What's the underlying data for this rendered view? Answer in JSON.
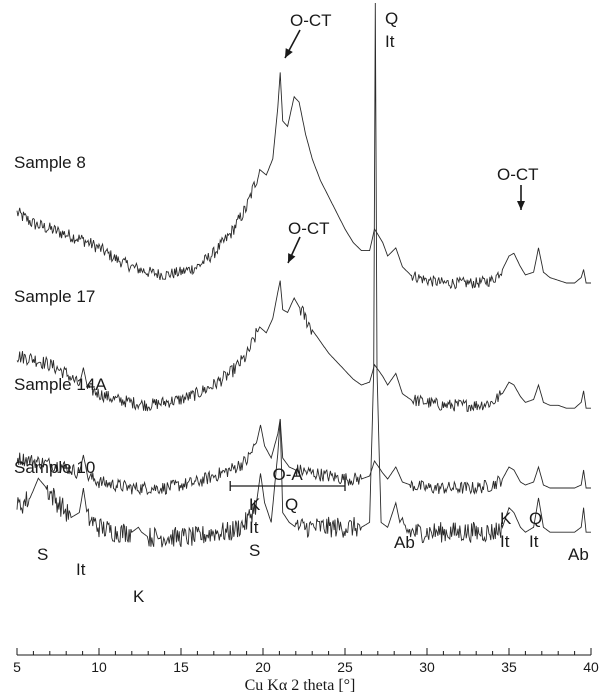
{
  "chart_data": {
    "type": "line",
    "xlabel": "Cu Kα 2 theta [°]",
    "ylabel": "",
    "xlim": [
      5,
      40
    ],
    "x_ticks": [
      5,
      10,
      15,
      20,
      25,
      30,
      35,
      40
    ],
    "grid": false,
    "legend": "none",
    "series": [
      {
        "name": "Sample 8",
        "points": [
          [
            5,
            0.46
          ],
          [
            6,
            0.42
          ],
          [
            7,
            0.4
          ],
          [
            8,
            0.38
          ],
          [
            9,
            0.36
          ],
          [
            10,
            0.33
          ],
          [
            11,
            0.29
          ],
          [
            12,
            0.26
          ],
          [
            13,
            0.24
          ],
          [
            14,
            0.23
          ],
          [
            15,
            0.24
          ],
          [
            16,
            0.26
          ],
          [
            17,
            0.31
          ],
          [
            18,
            0.38
          ],
          [
            19,
            0.48
          ],
          [
            19.8,
            0.62
          ],
          [
            20.2,
            0.6
          ],
          [
            20.6,
            0.66
          ],
          [
            20.9,
            0.85
          ],
          [
            21.05,
            0.98
          ],
          [
            21.2,
            0.8
          ],
          [
            21.5,
            0.78
          ],
          [
            21.9,
            0.89
          ],
          [
            22.2,
            0.87
          ],
          [
            22.6,
            0.75
          ],
          [
            23,
            0.66
          ],
          [
            23.5,
            0.58
          ],
          [
            24,
            0.52
          ],
          [
            24.5,
            0.46
          ],
          [
            25,
            0.4
          ],
          [
            25.5,
            0.35
          ],
          [
            26,
            0.32
          ],
          [
            26.5,
            0.32
          ],
          [
            26.8,
            0.4
          ],
          [
            27.3,
            0.35
          ],
          [
            27.6,
            0.3
          ],
          [
            28.1,
            0.33
          ],
          [
            28.5,
            0.26
          ],
          [
            29,
            0.23
          ],
          [
            30,
            0.21
          ],
          [
            31,
            0.2
          ],
          [
            32,
            0.2
          ],
          [
            33,
            0.2
          ],
          [
            34,
            0.21
          ],
          [
            34.6,
            0.25
          ],
          [
            35,
            0.3
          ],
          [
            35.3,
            0.31
          ],
          [
            35.7,
            0.26
          ],
          [
            36,
            0.23
          ],
          [
            36.5,
            0.24
          ],
          [
            36.8,
            0.33
          ],
          [
            37.1,
            0.24
          ],
          [
            37.5,
            0.22
          ],
          [
            38,
            0.21
          ],
          [
            38.5,
            0.2
          ],
          [
            39,
            0.2
          ],
          [
            39.4,
            0.22
          ],
          [
            39.55,
            0.25
          ],
          [
            39.7,
            0.2
          ],
          [
            40,
            0.2
          ]
        ]
      },
      {
        "name": "Sample 17",
        "points": [
          [
            5,
            0.4
          ],
          [
            6,
            0.39
          ],
          [
            7,
            0.37
          ],
          [
            8,
            0.34
          ],
          [
            8.8,
            0.3
          ],
          [
            9.05,
            0.36
          ],
          [
            9.3,
            0.29
          ],
          [
            10,
            0.27
          ],
          [
            11,
            0.25
          ],
          [
            12,
            0.24
          ],
          [
            13,
            0.23
          ],
          [
            14,
            0.24
          ],
          [
            15,
            0.25
          ],
          [
            16,
            0.27
          ],
          [
            17,
            0.3
          ],
          [
            18,
            0.34
          ],
          [
            19,
            0.4
          ],
          [
            19.8,
            0.5
          ],
          [
            20.2,
            0.48
          ],
          [
            20.6,
            0.53
          ],
          [
            20.9,
            0.62
          ],
          [
            21.05,
            0.66
          ],
          [
            21.2,
            0.56
          ],
          [
            21.5,
            0.55
          ],
          [
            21.9,
            0.6
          ],
          [
            22.3,
            0.56
          ],
          [
            23,
            0.49
          ],
          [
            23.5,
            0.45
          ],
          [
            24,
            0.41
          ],
          [
            24.5,
            0.38
          ],
          [
            25,
            0.35
          ],
          [
            25.5,
            0.32
          ],
          [
            26,
            0.3
          ],
          [
            26.5,
            0.31
          ],
          [
            26.8,
            0.37
          ],
          [
            27.3,
            0.33
          ],
          [
            27.6,
            0.3
          ],
          [
            28.1,
            0.34
          ],
          [
            28.5,
            0.27
          ],
          [
            29,
            0.25
          ],
          [
            30,
            0.24
          ],
          [
            31,
            0.23
          ],
          [
            32,
            0.23
          ],
          [
            33,
            0.23
          ],
          [
            34,
            0.24
          ],
          [
            34.6,
            0.27
          ],
          [
            35,
            0.31
          ],
          [
            35.3,
            0.3
          ],
          [
            35.7,
            0.26
          ],
          [
            36,
            0.24
          ],
          [
            36.5,
            0.25
          ],
          [
            36.8,
            0.3
          ],
          [
            37.1,
            0.24
          ],
          [
            37.5,
            0.23
          ],
          [
            38,
            0.23
          ],
          [
            38.5,
            0.22
          ],
          [
            39,
            0.22
          ],
          [
            39.4,
            0.24
          ],
          [
            39.55,
            0.28
          ],
          [
            39.7,
            0.22
          ],
          [
            40,
            0.22
          ]
        ]
      },
      {
        "name": "Sample 14A",
        "points": [
          [
            5,
            0.34
          ],
          [
            6,
            0.33
          ],
          [
            7,
            0.32
          ],
          [
            8,
            0.31
          ],
          [
            8.8,
            0.29
          ],
          [
            9.05,
            0.35
          ],
          [
            9.3,
            0.28
          ],
          [
            10,
            0.26
          ],
          [
            11,
            0.25
          ],
          [
            12,
            0.24
          ],
          [
            13,
            0.24
          ],
          [
            14,
            0.24
          ],
          [
            15,
            0.25
          ],
          [
            16,
            0.26
          ],
          [
            17,
            0.28
          ],
          [
            18,
            0.3
          ],
          [
            19,
            0.33
          ],
          [
            19.6,
            0.39
          ],
          [
            19.85,
            0.45
          ],
          [
            20.1,
            0.38
          ],
          [
            20.5,
            0.34
          ],
          [
            20.9,
            0.42
          ],
          [
            21.05,
            0.47
          ],
          [
            21.2,
            0.34
          ],
          [
            21.6,
            0.31
          ],
          [
            22,
            0.3
          ],
          [
            23,
            0.29
          ],
          [
            24,
            0.28
          ],
          [
            25,
            0.27
          ],
          [
            26,
            0.27
          ],
          [
            26.5,
            0.28
          ],
          [
            26.8,
            0.33
          ],
          [
            27.3,
            0.29
          ],
          [
            27.6,
            0.27
          ],
          [
            28.1,
            0.31
          ],
          [
            28.5,
            0.26
          ],
          [
            29,
            0.25
          ],
          [
            30,
            0.24
          ],
          [
            31,
            0.24
          ],
          [
            32,
            0.24
          ],
          [
            33,
            0.24
          ],
          [
            34,
            0.25
          ],
          [
            34.6,
            0.27
          ],
          [
            35,
            0.31
          ],
          [
            35.3,
            0.3
          ],
          [
            35.7,
            0.26
          ],
          [
            36,
            0.25
          ],
          [
            36.5,
            0.26
          ],
          [
            36.8,
            0.31
          ],
          [
            37.1,
            0.25
          ],
          [
            37.5,
            0.24
          ],
          [
            38,
            0.24
          ],
          [
            38.5,
            0.24
          ],
          [
            39,
            0.24
          ],
          [
            39.4,
            0.25
          ],
          [
            39.55,
            0.3
          ],
          [
            39.7,
            0.24
          ],
          [
            40,
            0.24
          ]
        ]
      },
      {
        "name": "Sample 10",
        "points": [
          [
            5,
            0.27
          ],
          [
            5.8,
            0.29
          ],
          [
            6.3,
            0.33
          ],
          [
            6.8,
            0.31
          ],
          [
            7.5,
            0.28
          ],
          [
            8.3,
            0.25
          ],
          [
            8.8,
            0.26
          ],
          [
            9.05,
            0.31
          ],
          [
            9.3,
            0.25
          ],
          [
            10,
            0.23
          ],
          [
            11,
            0.22
          ],
          [
            12,
            0.22
          ],
          [
            12.4,
            0.23
          ],
          [
            12.6,
            0.22
          ],
          [
            13,
            0.21
          ],
          [
            14,
            0.21
          ],
          [
            15,
            0.21
          ],
          [
            16,
            0.21
          ],
          [
            17,
            0.22
          ],
          [
            18,
            0.22
          ],
          [
            19,
            0.24
          ],
          [
            19.6,
            0.28
          ],
          [
            19.85,
            0.34
          ],
          [
            20.1,
            0.28
          ],
          [
            20.5,
            0.24
          ],
          [
            20.9,
            0.38
          ],
          [
            21.05,
            0.45
          ],
          [
            21.2,
            0.26
          ],
          [
            21.6,
            0.24
          ],
          [
            22,
            0.23
          ],
          [
            23,
            0.23
          ],
          [
            24,
            0.23
          ],
          [
            25,
            0.23
          ],
          [
            26,
            0.23
          ],
          [
            26.5,
            0.24
          ],
          [
            26.75,
            0.55
          ],
          [
            26.85,
            1.3
          ],
          [
            26.95,
            0.55
          ],
          [
            27.2,
            0.24
          ],
          [
            27.6,
            0.23
          ],
          [
            28.1,
            0.28
          ],
          [
            28.4,
            0.23
          ],
          [
            29,
            0.22
          ],
          [
            30,
            0.22
          ],
          [
            31,
            0.22
          ],
          [
            32,
            0.22
          ],
          [
            33,
            0.22
          ],
          [
            34,
            0.22
          ],
          [
            34.6,
            0.23
          ],
          [
            35,
            0.27
          ],
          [
            35.3,
            0.26
          ],
          [
            35.7,
            0.23
          ],
          [
            36,
            0.22
          ],
          [
            36.5,
            0.23
          ],
          [
            36.8,
            0.29
          ],
          [
            37.1,
            0.23
          ],
          [
            37.5,
            0.22
          ],
          [
            38,
            0.22
          ],
          [
            38.5,
            0.22
          ],
          [
            39,
            0.22
          ],
          [
            39.4,
            0.23
          ],
          [
            39.55,
            0.27
          ],
          [
            39.7,
            0.22
          ],
          [
            40,
            0.22
          ]
        ]
      }
    ],
    "sample_labels": [
      "Sample 8",
      "Sample 17",
      "Sample 14A",
      "Sample 10"
    ],
    "annotations": [
      {
        "id": "s8-oct-main",
        "lines": [
          "O-CT"
        ],
        "arrow": true,
        "x": 22.1
      },
      {
        "id": "s8-q-it",
        "lines": [
          "Q",
          "It"
        ],
        "arrow": false,
        "x": 26.9
      },
      {
        "id": "s8-oct-right",
        "lines": [
          "O-CT"
        ],
        "arrow": true,
        "x": 36.0
      },
      {
        "id": "s17-oct",
        "lines": [
          "O-CT"
        ],
        "arrow": true,
        "x": 22.0
      },
      {
        "id": "oa-range",
        "lines": [
          "O-A"
        ],
        "range": [
          18,
          25
        ]
      },
      {
        "id": "s10-s",
        "lines": [
          "S"
        ],
        "x": 6.3
      },
      {
        "id": "s10-it",
        "lines": [
          "It"
        ],
        "x": 9.0
      },
      {
        "id": "s10-k",
        "lines": [
          "K"
        ],
        "x": 12.4
      },
      {
        "id": "s10-k-it-s",
        "lines": [
          "K",
          "It",
          "S"
        ],
        "x": 19.8
      },
      {
        "id": "s10-q",
        "lines": [
          "Q"
        ],
        "x": 21.0
      },
      {
        "id": "s10-ab-1",
        "lines": [
          "Ab"
        ],
        "x": 28.0
      },
      {
        "id": "s10-k-it-2",
        "lines": [
          "K",
          "It"
        ],
        "x": 35.0
      },
      {
        "id": "s10-q-it-2",
        "lines": [
          "Q",
          "It"
        ],
        "x": 36.8
      },
      {
        "id": "s10-ab-2",
        "lines": [
          "Ab"
        ],
        "x": 39.6
      }
    ]
  }
}
